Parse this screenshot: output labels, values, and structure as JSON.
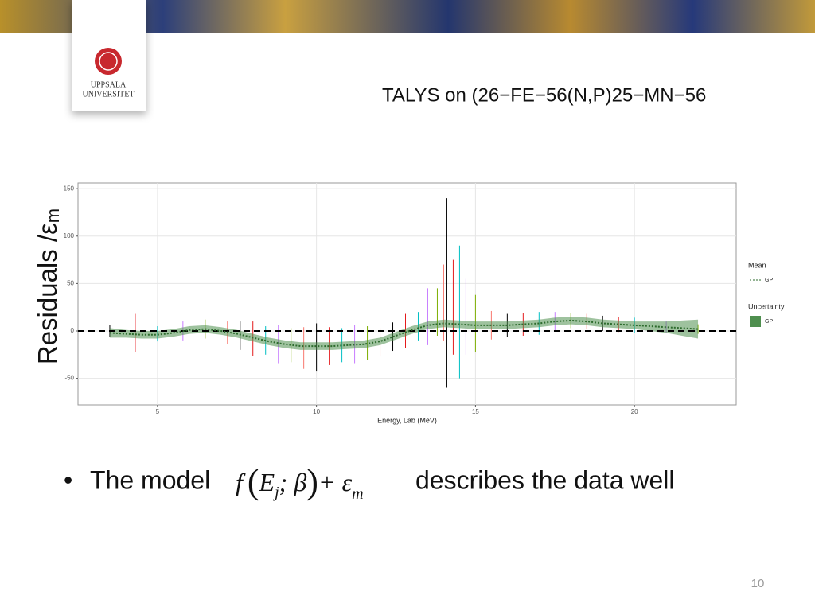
{
  "slide": {
    "title": "TALYS on (26−FE−56(N,P)25−MN−56",
    "logo_line1": "UPPSALA",
    "logo_line2": "UNIVERSITET",
    "bullet_start": "The model",
    "formula_f": "f",
    "formula_E": "E",
    "formula_j": "j",
    "formula_beta": "; β",
    "formula_plus": "+ ε",
    "formula_m": "m",
    "bullet_end": "describes the data well",
    "page_number": "10",
    "y_label": "Residuals /ε",
    "y_label_sub": "m"
  },
  "chart_data": {
    "type": "gp-residuals",
    "x_label": "Energy, Lab (MeV)",
    "xlim": [
      2.5,
      23.2
    ],
    "ylim": [
      -78,
      156
    ],
    "xticks": [
      5,
      10,
      15,
      20
    ],
    "yticks": [
      -50,
      0,
      50,
      100,
      150
    ],
    "grid": true,
    "hline": 0,
    "residuals": {
      "x": [
        3.5,
        4.3,
        5.0,
        5.8,
        6.5,
        7.2,
        7.6,
        8.0,
        8.4,
        8.8,
        9.2,
        9.6,
        10.0,
        10.4,
        10.8,
        11.2,
        11.6,
        12.0,
        12.4,
        12.8,
        13.2,
        13.5,
        13.8,
        14.0,
        14.1,
        14.3,
        14.5,
        14.7,
        15.0,
        15.5,
        16.0,
        16.5,
        17.0,
        17.5,
        18.0,
        18.5,
        19.0,
        19.5,
        20.0,
        21.0,
        22.0
      ],
      "values": [
        0,
        -2,
        -3,
        0,
        2,
        -2,
        -5,
        -8,
        -10,
        -14,
        -15,
        -18,
        -17,
        -16,
        -15,
        -14,
        -13,
        -12,
        -6,
        0,
        5,
        15,
        20,
        30,
        40,
        25,
        20,
        15,
        8,
        6,
        6,
        7,
        8,
        10,
        11,
        10,
        8,
        7,
        6,
        4,
        2
      ],
      "errors": [
        6,
        20,
        8,
        10,
        10,
        12,
        15,
        18,
        15,
        20,
        18,
        22,
        25,
        20,
        18,
        20,
        18,
        15,
        15,
        18,
        15,
        30,
        25,
        40,
        100,
        50,
        70,
        40,
        30,
        15,
        12,
        12,
        12,
        10,
        8,
        8,
        8,
        8,
        8,
        6,
        5
      ],
      "colors": [
        "#000000",
        "#e41a1c",
        "#00bfc4",
        "#c77cff",
        "#7cae00",
        "#f8766d"
      ]
    },
    "mean_title": "Mean",
    "uncertainty_title": "Uncertainty",
    "mean": {
      "name": "GP",
      "color": "#2d6b2d",
      "x": [
        3.5,
        4,
        4.5,
        5,
        5.5,
        6,
        6.5,
        7,
        7.5,
        8,
        8.5,
        9,
        9.5,
        10,
        10.5,
        11,
        11.5,
        12,
        12.5,
        13,
        13.5,
        14,
        14.5,
        15,
        15.5,
        16,
        16.5,
        17,
        17.5,
        18,
        18.5,
        19,
        19.5,
        20,
        20.5,
        21,
        21.5,
        22
      ],
      "values": [
        -2,
        -3,
        -4,
        -4,
        -2,
        1,
        2,
        0,
        -3,
        -7,
        -11,
        -14,
        -16,
        -16,
        -16,
        -15,
        -14,
        -11,
        -5,
        1,
        6,
        8,
        7,
        6,
        6,
        6,
        7,
        8,
        10,
        11,
        10,
        8,
        7,
        6,
        5,
        4,
        3,
        2
      ]
    },
    "uncertainty": {
      "name": "GP",
      "color": "#4f8f4f",
      "lower": [
        -7,
        -7,
        -8,
        -8,
        -6,
        -3,
        -2,
        -4,
        -7,
        -11,
        -15,
        -18,
        -20,
        -20,
        -20,
        -19,
        -18,
        -15,
        -9,
        -3,
        2,
        4,
        3,
        2,
        2,
        2,
        3,
        4,
        6,
        7,
        6,
        4,
        3,
        2,
        0,
        -2,
        -5,
        -8
      ],
      "upper": [
        3,
        1,
        0,
        0,
        2,
        5,
        6,
        4,
        1,
        -3,
        -7,
        -10,
        -12,
        -12,
        -12,
        -11,
        -10,
        -7,
        -1,
        5,
        10,
        12,
        11,
        10,
        10,
        10,
        11,
        12,
        14,
        15,
        14,
        12,
        11,
        10,
        10,
        10,
        11,
        12
      ]
    }
  }
}
